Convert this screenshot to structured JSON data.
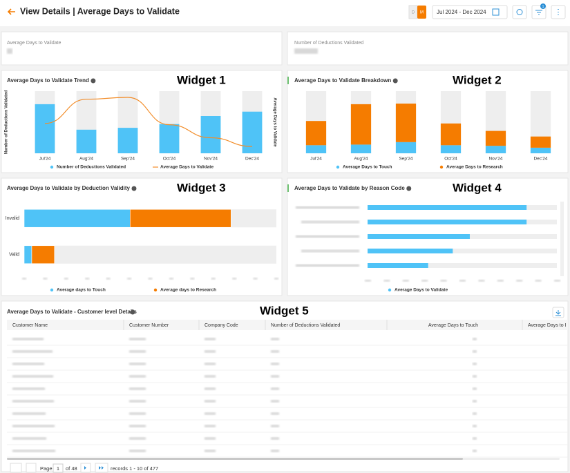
{
  "header": {
    "title": "View Details | Average Days to Validate",
    "toggle": [
      "D",
      "M"
    ],
    "date_range": "Jul 2024 - Dec 2024",
    "filter_badge": "1"
  },
  "kpis": [
    {
      "label": "Average Days to Validate"
    },
    {
      "label": "Number of Deductions Validated"
    }
  ],
  "chart_data": [
    {
      "type": "combo",
      "title": "Average Days to Validate Trend",
      "annotation": "Widget 1",
      "ylabel": "Number of Deductions Validated",
      "y2label": "Average Days to Validate",
      "categories": [
        "Jul'24",
        "Aug'24",
        "Sep'24",
        "Oct'24",
        "Nov'24",
        "Dec'24"
      ],
      "series": [
        {
          "name": "Number of Deductions Validated",
          "type": "bar",
          "color": "#4fc3f7",
          "values": [
            79,
            38,
            41,
            47,
            60,
            67
          ]
        },
        {
          "name": "Average Days to Validate",
          "type": "line",
          "axis": "y2",
          "color": "#f28c28",
          "values": [
            48,
            87,
            90,
            46,
            25,
            11
          ]
        }
      ],
      "ylim": [
        0,
        100
      ],
      "y2lim": [
        0,
        100
      ],
      "legend": "bottom"
    },
    {
      "type": "stacked_bar",
      "title": "Average Days to Validate Breakdown",
      "annotation": "Widget 2",
      "categories": [
        "Jul'24",
        "Aug'24",
        "Sep'24",
        "Oct'24",
        "Nov'24",
        "Dec'24"
      ],
      "series": [
        {
          "name": "Average Days to Touch",
          "color": "#4fc3f7",
          "values": [
            13,
            14,
            18,
            13,
            12,
            9
          ]
        },
        {
          "name": "Average Days to Research",
          "color": "#f57c00",
          "values": [
            39,
            65,
            62,
            35,
            24,
            18
          ]
        }
      ],
      "ylim": [
        0,
        100
      ],
      "legend": "bottom"
    },
    {
      "type": "stacked_barh",
      "title": "Average Days to Validate by Deduction Validity",
      "annotation": "Widget 3",
      "categories": [
        "Invalid",
        "Valid"
      ],
      "series": [
        {
          "name": "Average days to Touch",
          "color": "#4fc3f7",
          "values": [
            42,
            3
          ]
        },
        {
          "name": "Average days to Research",
          "color": "#f57c00",
          "values": [
            40,
            9
          ]
        }
      ],
      "xlim": [
        0,
        100
      ],
      "legend": "bottom"
    },
    {
      "type": "barh",
      "title": "Average Days to Validate by Reason Code",
      "annotation": "Widget 4",
      "categories": [
        null,
        null,
        null,
        null,
        null
      ],
      "series": [
        {
          "name": "Average Days to Validate",
          "color": "#4fc3f7",
          "values": [
            84,
            84,
            54,
            45,
            32
          ]
        }
      ],
      "xlim": [
        0,
        100
      ],
      "legend": "bottom"
    }
  ],
  "table": {
    "title": "Average Days to Validate - Customer level Details",
    "annotation": "Widget 5",
    "columns": [
      "Customer Name",
      "Customer Number",
      "Company Code",
      "Number of Deductions Validated",
      "Average Days to Touch",
      "Average Days to I"
    ]
  },
  "pagination": {
    "page_label": "Page",
    "page": "1",
    "of": "of 48",
    "records": "records 1 - 10 of 477"
  }
}
